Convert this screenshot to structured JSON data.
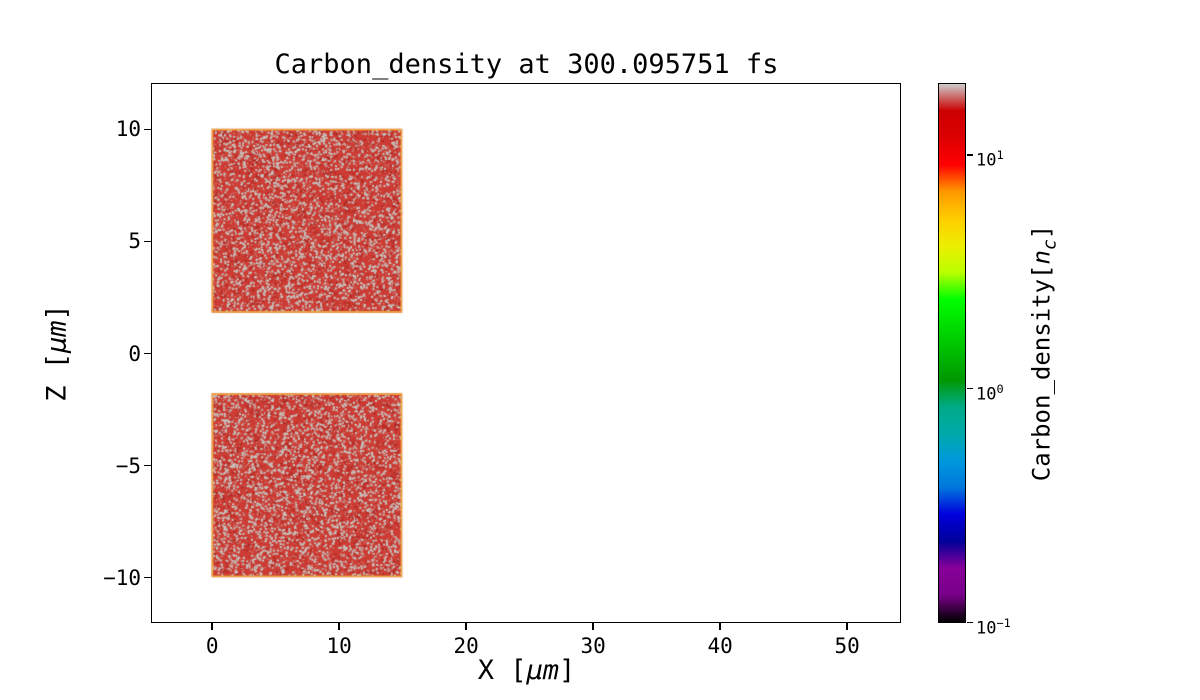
{
  "figure": {
    "background": "#ffffff"
  },
  "chart_data": {
    "type": "heatmap",
    "title": "Carbon_density at 300.095751 fs",
    "xlabel_prefix": "X [",
    "xlabel_math": "μm",
    "xlabel_suffix": "]",
    "ylabel_prefix": "Z [",
    "ylabel_math": "μm",
    "ylabel_suffix": "]",
    "xlim": [
      -4.7,
      54.2
    ],
    "ylim": [
      -12,
      12
    ],
    "x_ticks": [
      0,
      10,
      20,
      30,
      40,
      50
    ],
    "y_ticks": [
      -10,
      -5,
      0,
      5,
      10
    ],
    "grid": false,
    "plot_bg": "#ffffff",
    "regions": [
      {
        "name": "upper-carbon-slab",
        "x": [
          0,
          15
        ],
        "z": [
          1.8,
          10
        ],
        "approx_density_nc": 10,
        "fill": "#cd3c34",
        "speckle": "#c6c4bf",
        "speckle2": "#b12b26",
        "edge": "#efa53d"
      },
      {
        "name": "lower-carbon-slab",
        "x": [
          0,
          15
        ],
        "z": [
          -10,
          -1.8
        ],
        "approx_density_nc": 10,
        "fill": "#cd3c34",
        "speckle": "#c6c4bf",
        "speckle2": "#b12b26",
        "edge": "#efa53d"
      }
    ],
    "colorbar": {
      "label_prefix": "Carbon_density[",
      "label_math": "n",
      "label_sub": "c",
      "label_suffix": "]",
      "scale": "log",
      "vmin": 0.1,
      "vmax": 20,
      "ticks": [
        10,
        1,
        0.1
      ],
      "colormap": "nipy_spectral",
      "colormap_stops": [
        [
          0.0,
          "#000000"
        ],
        [
          0.05,
          "#770088"
        ],
        [
          0.1,
          "#880099"
        ],
        [
          0.15,
          "#000099"
        ],
        [
          0.2,
          "#0000dd"
        ],
        [
          0.25,
          "#0077dd"
        ],
        [
          0.3,
          "#0099dd"
        ],
        [
          0.35,
          "#00aaaa"
        ],
        [
          0.4,
          "#00aa88"
        ],
        [
          0.45,
          "#009900"
        ],
        [
          0.5,
          "#00bb00"
        ],
        [
          0.55,
          "#00dd00"
        ],
        [
          0.6,
          "#00ff00"
        ],
        [
          0.65,
          "#bbff00"
        ],
        [
          0.7,
          "#eeee00"
        ],
        [
          0.75,
          "#ffcc00"
        ],
        [
          0.8,
          "#ff9900"
        ],
        [
          0.85,
          "#ff0000"
        ],
        [
          0.9,
          "#dd0000"
        ],
        [
          0.95,
          "#cc0000"
        ],
        [
          1.0,
          "#cccccc"
        ]
      ]
    }
  }
}
